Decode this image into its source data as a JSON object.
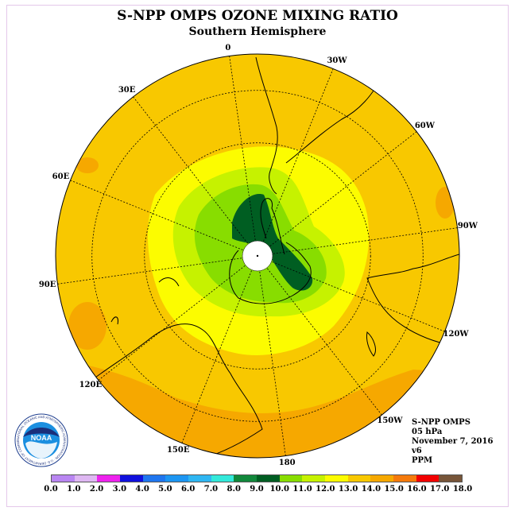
{
  "title": "S-NPP OMPS OZONE MIXING RATIO",
  "subtitle": "Southern Hemisphere",
  "longitude_labels": [
    {
      "text": "90W",
      "lon": -90
    },
    {
      "text": "60W",
      "lon": -60
    },
    {
      "text": "30W",
      "lon": -30
    },
    {
      "text": "0",
      "lon": 0
    },
    {
      "text": "30E",
      "lon": 30
    },
    {
      "text": "60E",
      "lon": 60
    },
    {
      "text": "90E",
      "lon": 90
    },
    {
      "text": "120E",
      "lon": 120
    },
    {
      "text": "150E",
      "lon": 150
    },
    {
      "text": "180",
      "lon": 180
    },
    {
      "text": "150W",
      "lon": -150
    },
    {
      "text": "120W",
      "lon": -120
    }
  ],
  "info": {
    "instrument": "S-NPP OMPS",
    "level": "05 hPa",
    "date": "November 7, 2016",
    "version": "v6",
    "units": "PPM"
  },
  "logo": {
    "text": "NOAA",
    "ring_text": "NATIONAL OCEANIC AND ATMOSPHERIC ADMINISTRATION · U.S. DEPARTMENT OF COMMERCE"
  },
  "colorbar": {
    "ticks": [
      "0.0",
      "1.0",
      "2.0",
      "3.0",
      "4.0",
      "5.0",
      "6.0",
      "7.0",
      "8.0",
      "9.0",
      "10.0",
      "11.0",
      "12.0",
      "13.0",
      "14.0",
      "15.0",
      "16.0",
      "17.0",
      "18.0"
    ],
    "colors": [
      "#b986f2",
      "#deb7f2",
      "#ee22ee",
      "#1010dd",
      "#1f76ef",
      "#1d96f2",
      "#2fb6f2",
      "#33e9da",
      "#11883b",
      "#005e22",
      "#88dd00",
      "#c6f200",
      "#fcfc00",
      "#f8c800",
      "#f6a800",
      "#f57a0c",
      "#f20000",
      "#775539"
    ]
  },
  "map_colors": {
    "ocean_base": "#f8c800",
    "outer_band": "#f6a800",
    "yellow": "#fcfc00",
    "lime": "#c6f200",
    "green": "#88dd00",
    "dark_green": "#005e22"
  }
}
